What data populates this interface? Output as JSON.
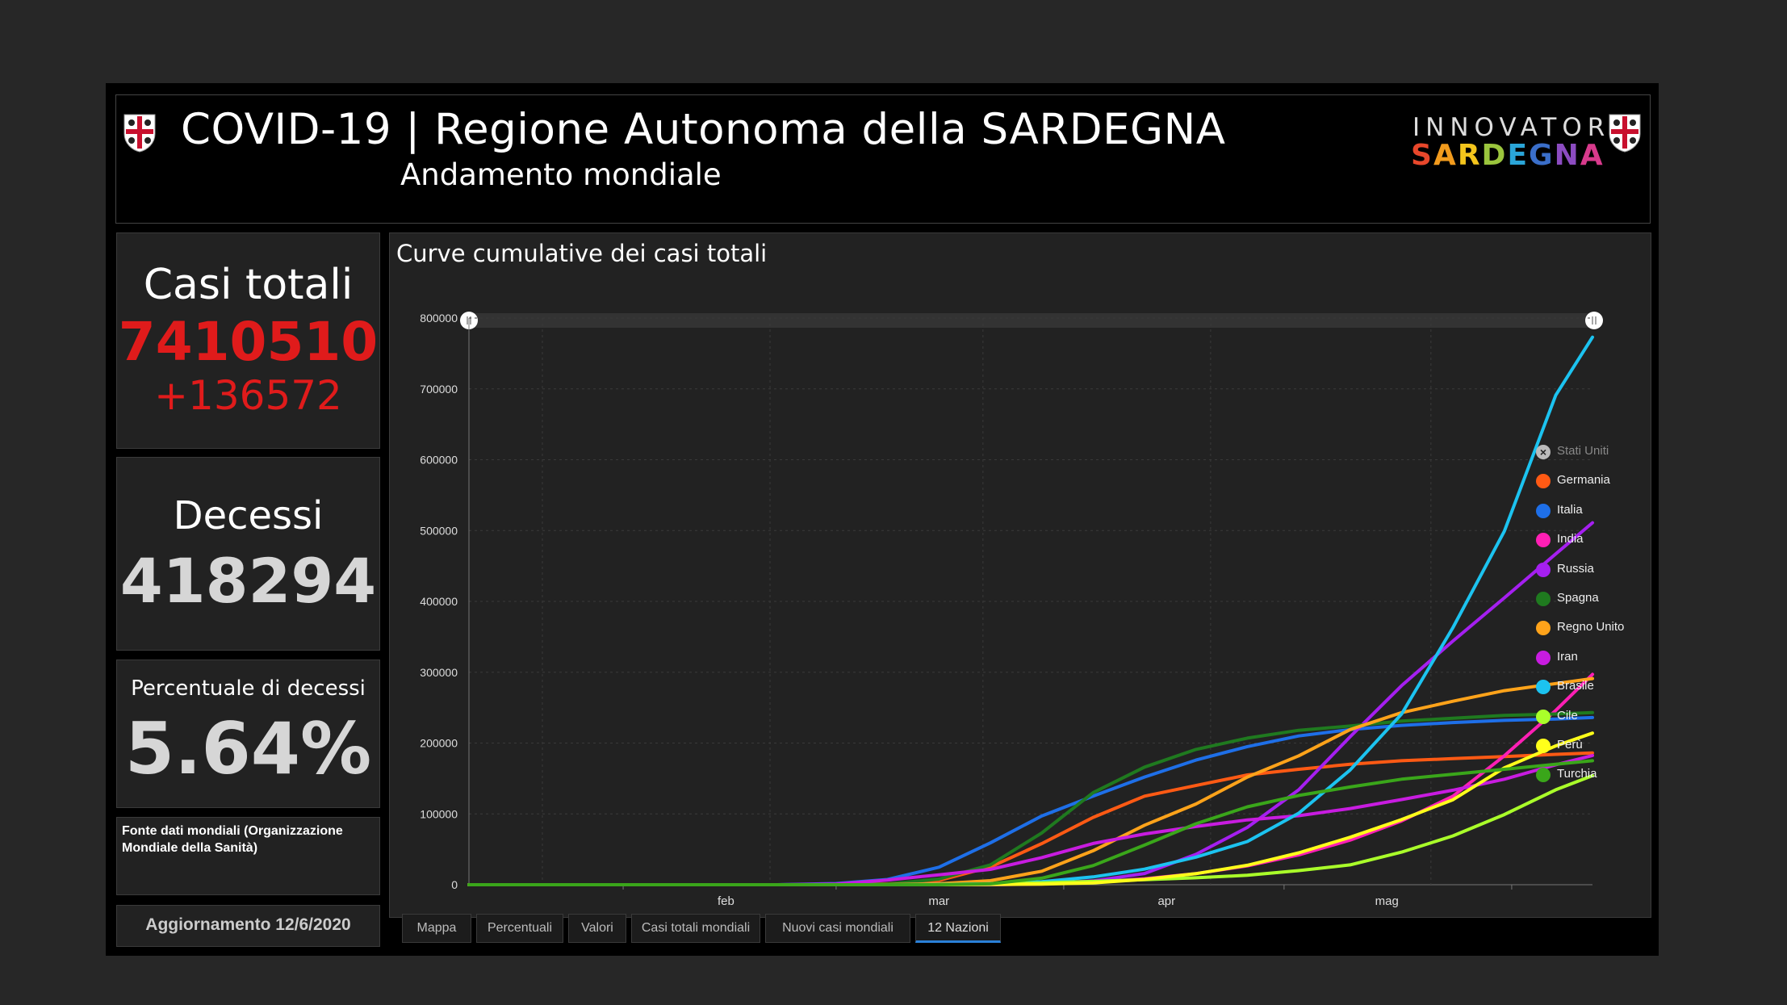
{
  "header": {
    "title": "COVID-19 | Regione Autonoma della SARDEGNA",
    "subtitle": "Andamento mondiale",
    "logo_top": "INNOVATORI",
    "logo_bottom": "SARDEGNA",
    "logo_colors": [
      "#e8472b",
      "#f29b1d",
      "#f4c51c",
      "#9bc53d",
      "#2aa5d8",
      "#3a6ec9",
      "#8c4cc1",
      "#d83a8c"
    ]
  },
  "stats": {
    "total_label": "Casi totali",
    "total_value": "7410510",
    "total_delta": "+136572",
    "total_color": "#e01b1b",
    "deaths_label": "Decessi",
    "deaths_value": "418294",
    "pct_label": "Percentuale di decessi",
    "pct_value": "5.64%",
    "source": "Fonte dati mondiali (Organizzazione Mondiale della Sanità)",
    "update": "Aggiornamento 12/6/2020"
  },
  "tabs": [
    {
      "label": "Mappa",
      "active": false
    },
    {
      "label": "Percentuali",
      "active": false
    },
    {
      "label": "Valori",
      "active": false
    },
    {
      "label": "Casi totali mondiali",
      "active": false
    },
    {
      "label": "Nuovi casi mondiali",
      "active": false
    },
    {
      "label": "12 Nazioni",
      "active": true
    }
  ],
  "chart_data": {
    "type": "line",
    "title": "Curve cumulative dei casi totali",
    "xlabel": "",
    "ylabel": "",
    "x_ticks": [
      "feb",
      "mar",
      "apr",
      "mag"
    ],
    "y_ticks": [
      "0",
      "100000",
      "200000",
      "300000",
      "400000",
      "500000",
      "600000",
      "700000",
      "800000"
    ],
    "ylim": [
      0,
      800000
    ],
    "grid": true,
    "legend_position": "right",
    "x_dates": [
      "2020-01-11",
      "2020-01-18",
      "2020-01-25",
      "2020-02-01",
      "2020-02-08",
      "2020-02-15",
      "2020-02-22",
      "2020-03-01",
      "2020-03-08",
      "2020-03-15",
      "2020-03-22",
      "2020-03-29",
      "2020-04-05",
      "2020-04-12",
      "2020-04-19",
      "2020-04-26",
      "2020-05-03",
      "2020-05-10",
      "2020-05-17",
      "2020-05-24",
      "2020-05-31",
      "2020-06-07",
      "2020-06-12"
    ],
    "series": [
      {
        "name": "Stati Uniti",
        "color": "#cccccc",
        "hidden": true,
        "values": []
      },
      {
        "name": "Germania",
        "color": "#ff5a14",
        "values": [
          0,
          0,
          0,
          0,
          0,
          0,
          0,
          0,
          1000,
          6000,
          25000,
          58000,
          95000,
          125000,
          140000,
          155000,
          163000,
          170000,
          175000,
          178000,
          181000,
          184000,
          186000
        ]
      },
      {
        "name": "Italia",
        "color": "#1e6fe8",
        "values": [
          0,
          0,
          0,
          0,
          0,
          0,
          0,
          1700,
          7400,
          24700,
          59000,
          97000,
          125000,
          152000,
          176000,
          195000,
          210000,
          219000,
          225000,
          229000,
          232000,
          234000,
          236000
        ]
      },
      {
        "name": "India",
        "color": "#ff1fb5",
        "values": [
          0,
          0,
          0,
          0,
          0,
          0,
          0,
          0,
          0,
          0,
          0,
          1000,
          3500,
          8400,
          15700,
          26500,
          42000,
          63000,
          90000,
          125000,
          182000,
          246000,
          297000
        ]
      },
      {
        "name": "Russia",
        "color": "#a51ff0",
        "values": [
          0,
          0,
          0,
          0,
          0,
          0,
          0,
          0,
          0,
          0,
          0,
          1500,
          5400,
          15800,
          42800,
          80900,
          134000,
          209000,
          281000,
          344000,
          405000,
          467000,
          511000
        ]
      },
      {
        "name": "Spagna",
        "color": "#1f7a1f",
        "values": [
          0,
          0,
          0,
          0,
          0,
          0,
          0,
          0,
          1000,
          8000,
          28000,
          73000,
          130000,
          166000,
          191000,
          207000,
          218000,
          224000,
          231000,
          235000,
          239000,
          241000,
          243000
        ]
      },
      {
        "name": "Regno Unito",
        "color": "#ffa31a",
        "values": [
          0,
          0,
          0,
          0,
          0,
          0,
          0,
          0,
          200,
          1400,
          5700,
          19000,
          48000,
          84000,
          114000,
          152000,
          182000,
          219000,
          243000,
          259000,
          274000,
          284000,
          291000
        ]
      },
      {
        "name": "Iran",
        "color": "#c81ce0",
        "values": [
          0,
          0,
          0,
          0,
          0,
          0,
          0,
          978,
          6600,
          14000,
          21600,
          38300,
          58200,
          71700,
          82200,
          91500,
          97400,
          107600,
          120200,
          133500,
          148900,
          169400,
          182500
        ]
      },
      {
        "name": "Brasile",
        "color": "#1cc3f0",
        "values": [
          0,
          0,
          0,
          0,
          0,
          0,
          0,
          2,
          25,
          200,
          1500,
          4300,
          11000,
          22000,
          39000,
          61000,
          101000,
          162000,
          241000,
          363000,
          499000,
          691000,
          773000
        ]
      },
      {
        "name": "Cile",
        "color": "#aaff2a",
        "values": [
          0,
          0,
          0,
          0,
          0,
          0,
          0,
          0,
          0,
          0,
          632,
          2700,
          4700,
          7200,
          9800,
          13300,
          20000,
          28000,
          46000,
          69000,
          99000,
          134000,
          154000
        ]
      },
      {
        "name": "Perù",
        "color": "#ffff1a",
        "values": [
          0,
          0,
          0,
          0,
          0,
          0,
          0,
          0,
          0,
          0,
          360,
          950,
          2500,
          7500,
          15600,
          27500,
          45000,
          67000,
          92000,
          120000,
          165000,
          196000,
          214000
        ]
      },
      {
        "name": "Turchia",
        "color": "#3aa61a",
        "values": [
          0,
          0,
          0,
          0,
          0,
          0,
          0,
          0,
          0,
          0,
          1200,
          9200,
          27000,
          56000,
          86000,
          110000,
          126000,
          138000,
          149000,
          156000,
          163000,
          170000,
          175000
        ]
      }
    ]
  }
}
